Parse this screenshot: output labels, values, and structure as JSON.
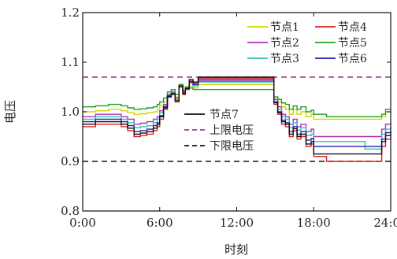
{
  "chart_data": {
    "type": "line",
    "xlabel": "时刻",
    "ylabel": "电压",
    "xlim": [
      0,
      24
    ],
    "ylim": [
      0.8,
      1.2
    ],
    "x_ticks": [
      0,
      6,
      12,
      18,
      24
    ],
    "x_tick_labels": [
      "0:00",
      "6:00",
      "12:00",
      "18:00",
      "24:00"
    ],
    "y_ticks": [
      0.8,
      0.9,
      1.0,
      1.1,
      1.2
    ],
    "y_tick_labels": [
      "0.8",
      "0.9",
      "1.0",
      "1.1",
      "1.2"
    ],
    "grid": false,
    "legend_placement": [
      "top-right",
      "center"
    ],
    "x": [
      0,
      1,
      2,
      3,
      3.5,
      4,
      4.5,
      5,
      5.5,
      5.8,
      6,
      6.3,
      6.6,
      6.9,
      7.2,
      7.5,
      7.8,
      8,
      8.3,
      8.6,
      9,
      10,
      11,
      12,
      13,
      14,
      14.6,
      14.9,
      15.2,
      15.5,
      15.8,
      16.1,
      16.4,
      16.7,
      17,
      17.4,
      17.8,
      18,
      19,
      20,
      21,
      22,
      22.5,
      23,
      23.3,
      23.6,
      24
    ],
    "series": [
      {
        "name": "节点1",
        "color": "#d4d400",
        "dash": "solid",
        "values": [
          1.0,
          1.002,
          1.005,
          1.002,
          0.998,
          0.995,
          0.996,
          0.998,
          1.0,
          1.005,
          1.012,
          1.02,
          1.035,
          1.04,
          1.03,
          1.05,
          1.035,
          1.045,
          1.052,
          1.048,
          1.055,
          1.055,
          1.055,
          1.055,
          1.055,
          1.055,
          1.055,
          1.03,
          1.02,
          1.01,
          1.005,
          0.995,
          1.005,
          0.995,
          1.0,
          0.99,
          0.995,
          0.985,
          0.985,
          0.985,
          0.985,
          0.985,
          0.985,
          0.985,
          0.99,
          1.0,
          1.0
        ]
      },
      {
        "name": "节点2",
        "color": "#b030b0",
        "dash": "solid",
        "values": [
          0.99,
          0.995,
          0.995,
          0.99,
          0.985,
          0.975,
          0.977,
          0.98,
          0.985,
          0.99,
          1.002,
          1.015,
          1.035,
          1.04,
          1.028,
          1.055,
          1.04,
          1.05,
          1.06,
          1.055,
          1.062,
          1.062,
          1.062,
          1.062,
          1.062,
          1.062,
          1.062,
          1.025,
          1.01,
          0.995,
          0.99,
          0.975,
          0.985,
          0.97,
          0.975,
          0.96,
          0.965,
          0.95,
          0.95,
          0.95,
          0.95,
          0.95,
          0.95,
          0.95,
          0.965,
          0.975,
          0.978
        ]
      },
      {
        "name": "节点3",
        "color": "#30c0b8",
        "dash": "solid",
        "values": [
          0.985,
          0.99,
          0.99,
          0.985,
          0.978,
          0.968,
          0.97,
          0.972,
          0.978,
          0.985,
          0.998,
          1.012,
          1.033,
          1.038,
          1.025,
          1.054,
          1.038,
          1.048,
          1.058,
          1.052,
          1.06,
          1.06,
          1.06,
          1.06,
          1.06,
          1.06,
          1.06,
          1.02,
          1.005,
          0.99,
          0.985,
          0.968,
          0.978,
          0.963,
          0.968,
          0.952,
          0.955,
          0.94,
          0.94,
          0.94,
          0.94,
          0.925,
          0.925,
          0.925,
          0.955,
          0.965,
          0.97
        ]
      },
      {
        "name": "节点4",
        "color": "#e02020",
        "dash": "solid",
        "values": [
          0.97,
          0.975,
          0.975,
          0.97,
          0.962,
          0.95,
          0.952,
          0.955,
          0.962,
          0.97,
          0.985,
          1.005,
          1.03,
          1.035,
          1.02,
          1.05,
          1.035,
          1.045,
          1.062,
          1.058,
          1.068,
          1.068,
          1.068,
          1.068,
          1.068,
          1.068,
          1.068,
          1.015,
          0.995,
          0.975,
          0.97,
          0.95,
          0.962,
          0.945,
          0.95,
          0.93,
          0.935,
          0.91,
          0.9,
          0.9,
          0.9,
          0.9,
          0.9,
          0.9,
          0.93,
          0.945,
          0.95
        ]
      },
      {
        "name": "节点5",
        "color": "#20a020",
        "dash": "solid",
        "values": [
          1.01,
          1.012,
          1.015,
          1.012,
          1.008,
          1.005,
          1.006,
          1.008,
          1.01,
          1.015,
          1.02,
          1.028,
          1.04,
          1.045,
          1.035,
          1.055,
          1.042,
          1.05,
          1.048,
          1.045,
          1.045,
          1.045,
          1.045,
          1.045,
          1.045,
          1.045,
          1.045,
          1.03,
          1.025,
          1.018,
          1.015,
          1.005,
          1.012,
          1.005,
          1.01,
          1.0,
          1.003,
          0.995,
          0.99,
          0.99,
          0.99,
          0.99,
          0.99,
          0.99,
          0.995,
          1.005,
          1.005
        ]
      },
      {
        "name": "节点6",
        "color": "#2020b0",
        "dash": "solid",
        "values": [
          0.98,
          0.985,
          0.985,
          0.98,
          0.972,
          0.96,
          0.962,
          0.965,
          0.972,
          0.978,
          0.992,
          1.01,
          1.032,
          1.037,
          1.022,
          1.052,
          1.037,
          1.047,
          1.06,
          1.055,
          1.065,
          1.065,
          1.065,
          1.065,
          1.065,
          1.065,
          1.065,
          1.018,
          1.0,
          0.983,
          0.978,
          0.96,
          0.97,
          0.955,
          0.96,
          0.943,
          0.946,
          0.93,
          0.93,
          0.93,
          0.93,
          0.93,
          0.93,
          0.93,
          0.945,
          0.958,
          0.962
        ]
      },
      {
        "name": "节点7",
        "color": "#111111",
        "dash": "solid",
        "values": [
          0.975,
          0.98,
          0.98,
          0.975,
          0.967,
          0.955,
          0.957,
          0.96,
          0.967,
          0.975,
          0.99,
          1.008,
          1.03,
          1.036,
          1.022,
          1.052,
          1.037,
          1.047,
          1.065,
          1.06,
          1.07,
          1.07,
          1.07,
          1.07,
          1.07,
          1.07,
          1.07,
          1.02,
          0.998,
          0.98,
          0.975,
          0.955,
          0.966,
          0.95,
          0.955,
          0.935,
          0.94,
          0.915,
          0.915,
          0.915,
          0.915,
          0.915,
          0.915,
          0.915,
          0.94,
          0.952,
          0.956
        ]
      }
    ],
    "reference_lines": [
      {
        "name": "上限电压",
        "y": 1.07,
        "color": "#a03a8a",
        "dash": "dashed"
      },
      {
        "name": "下限电压",
        "y": 0.9,
        "color": "#111111",
        "dash": "dashed"
      }
    ]
  }
}
